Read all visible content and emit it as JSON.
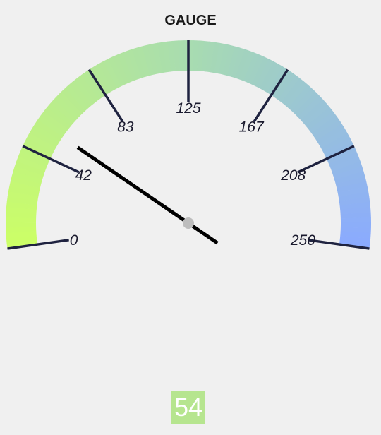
{
  "chart_data": {
    "type": "gauge",
    "title": "GAUGE",
    "min": 0,
    "max": 250,
    "ticks": [
      {
        "value": 0,
        "label": "0"
      },
      {
        "value": 42,
        "label": "42"
      },
      {
        "value": 83,
        "label": "83"
      },
      {
        "value": 125,
        "label": "125"
      },
      {
        "value": 167,
        "label": "167"
      },
      {
        "value": 208,
        "label": "208"
      },
      {
        "value": 250,
        "label": "250"
      }
    ],
    "value": 54,
    "value_label": "54",
    "gradient_colors": [
      "#ccff66",
      "#a8dcb0",
      "#8aaaff"
    ],
    "needle_color": "#000000",
    "value_box_color": "#b6e58f"
  }
}
